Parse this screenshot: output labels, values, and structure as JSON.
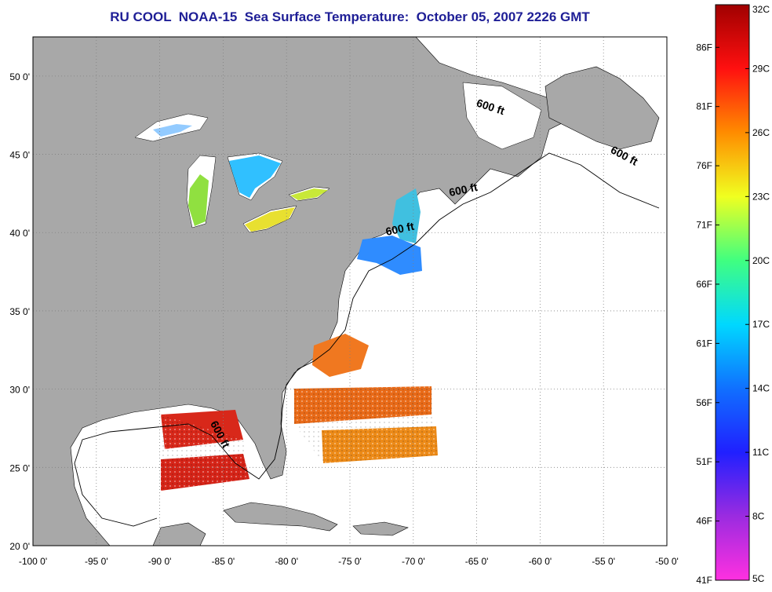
{
  "title": "RU COOL  NOAA-15  Sea Surface Temperature:  October 05, 2007 2226 GMT",
  "colors": {
    "land": "#a8a8a8",
    "ocean": "#ffffff",
    "grid": "#808080",
    "title": "#1e1e96"
  },
  "map": {
    "lon_range": [
      -100,
      -50
    ],
    "lat_range": [
      20,
      52.5
    ],
    "lon_ticks": [
      {
        "v": -100,
        "label": "-100 0'"
      },
      {
        "v": -95,
        "label": "-95 0'"
      },
      {
        "v": -90,
        "label": "-90 0'"
      },
      {
        "v": -85,
        "label": "-85 0'"
      },
      {
        "v": -80,
        "label": "-80 0'"
      },
      {
        "v": -75,
        "label": "-75 0'"
      },
      {
        "v": -70,
        "label": "-70 0'"
      },
      {
        "v": -65,
        "label": "-65 0'"
      },
      {
        "v": -60,
        "label": "-60 0'"
      },
      {
        "v": -55,
        "label": "-55 0'"
      },
      {
        "v": -50,
        "label": "-50 0'"
      }
    ],
    "lat_ticks": [
      {
        "v": 20,
        "label": "20 0'"
      },
      {
        "v": 25,
        "label": "25 0'"
      },
      {
        "v": 30,
        "label": "30 0'"
      },
      {
        "v": 35,
        "label": "35 0'"
      },
      {
        "v": 40,
        "label": "40 0'"
      },
      {
        "v": 45,
        "label": "45 0'"
      },
      {
        "v": 50,
        "label": "50 0'"
      }
    ],
    "contour_label": "600 ft",
    "contour_labels": [
      {
        "lon": -64,
        "lat": 47.8,
        "rot": 18
      },
      {
        "lon": -53.5,
        "lat": 44.7,
        "rot": 28
      },
      {
        "lon": -66,
        "lat": 42.5,
        "rot": -12
      },
      {
        "lon": -71,
        "lat": 40.0,
        "rot": -12
      },
      {
        "lon": -85.5,
        "lat": 27.0,
        "rot": 62
      }
    ]
  },
  "colorbar": {
    "range_c": [
      5,
      32
    ],
    "stops": [
      "#ff30e0",
      "#9b2be0",
      "#2020ff",
      "#1070ff",
      "#00d8ff",
      "#40ff80",
      "#f0ff20",
      "#ff8c00",
      "#ff1010",
      "#a00000"
    ],
    "celsius_ticks": [
      {
        "v": 32,
        "label": "32C"
      },
      {
        "v": 29,
        "label": "29C"
      },
      {
        "v": 26,
        "label": "26C"
      },
      {
        "v": 23,
        "label": "23C"
      },
      {
        "v": 20,
        "label": "20C"
      },
      {
        "v": 17,
        "label": "17C"
      },
      {
        "v": 14,
        "label": "14C"
      },
      {
        "v": 11,
        "label": "11C"
      },
      {
        "v": 8,
        "label": "8C"
      },
      {
        "v": 5,
        "label": "5C"
      }
    ],
    "fahrenheit_ticks": [
      {
        "v": 86,
        "label": "86F"
      },
      {
        "v": 81,
        "label": "81F"
      },
      {
        "v": 76,
        "label": "76F"
      },
      {
        "v": 71,
        "label": "71F"
      },
      {
        "v": 66,
        "label": "66F"
      },
      {
        "v": 61,
        "label": "61F"
      },
      {
        "v": 56,
        "label": "56F"
      },
      {
        "v": 51,
        "label": "51F"
      },
      {
        "v": 46,
        "label": "46F"
      },
      {
        "v": 41,
        "label": "41F"
      }
    ]
  },
  "sst_patches": [
    {
      "name": "lake-superior",
      "temp_c": 14
    },
    {
      "name": "lake-michigan",
      "temp_c": 19
    },
    {
      "name": "lake-huron",
      "temp_c": 17
    },
    {
      "name": "lake-erie",
      "temp_c": 22
    },
    {
      "name": "lake-ontario",
      "temp_c": 21
    },
    {
      "name": "gulf-of-maine",
      "temp_c": 15
    },
    {
      "name": "mid-atlantic-shelf",
      "temp_c": 13
    },
    {
      "name": "carolina-offshore",
      "temp_c": 25
    },
    {
      "name": "sargasso-band-north",
      "temp_c": 26
    },
    {
      "name": "sargasso-band-south",
      "temp_c": 26
    },
    {
      "name": "gulf-of-mexico-north",
      "temp_c": 29
    },
    {
      "name": "gulf-of-mexico-south",
      "temp_c": 29
    }
  ]
}
